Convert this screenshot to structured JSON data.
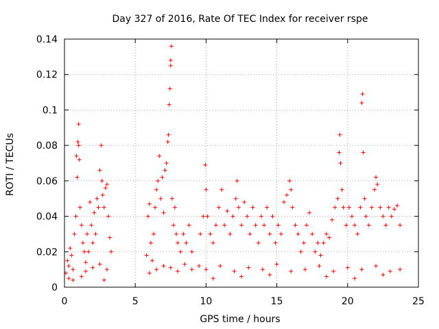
{
  "chart_data": {
    "type": "scatter",
    "title": "Day 327 of 2016, Rate Of TEC Index for receiver rspe",
    "xlabel": "GPS time / hours",
    "ylabel": "ROTI / TECUs",
    "xlim": [
      0,
      25
    ],
    "ylim": [
      0,
      0.14
    ],
    "xticks": [
      0,
      5,
      10,
      15,
      20,
      25
    ],
    "xtick_labels": [
      "0",
      "5",
      "10",
      "15",
      "20",
      "25"
    ],
    "yticks": [
      0,
      0.02,
      0.04,
      0.06,
      0.08,
      0.1,
      0.12,
      0.14
    ],
    "ytick_labels": [
      "0",
      "0.02",
      "0.04",
      "0.06",
      "0.08",
      "0.1",
      "0.12",
      "0.14"
    ],
    "grid": true,
    "marker": "plus",
    "marker_color": "#ff0000",
    "series": [
      {
        "name": "ROTI",
        "points": [
          [
            0.1,
            0.008
          ],
          [
            0.2,
            0.015
          ],
          [
            0.3,
            0.012
          ],
          [
            0.4,
            0.022
          ],
          [
            0.5,
            0.018
          ],
          [
            0.6,
            0.01
          ],
          [
            0.7,
            0.03
          ],
          [
            0.8,
            0.04
          ],
          [
            0.85,
            0.074
          ],
          [
            0.9,
            0.062
          ],
          [
            0.95,
            0.082
          ],
          [
            1.0,
            0.092
          ],
          [
            1.0,
            0.08
          ],
          [
            1.05,
            0.072
          ],
          [
            1.1,
            0.045
          ],
          [
            1.2,
            0.035
          ],
          [
            1.3,
            0.025
          ],
          [
            1.4,
            0.02
          ],
          [
            1.5,
            0.014
          ],
          [
            1.6,
            0.03
          ],
          [
            1.7,
            0.02
          ],
          [
            1.8,
            0.048
          ],
          [
            1.9,
            0.035
          ],
          [
            2.0,
            0.025
          ],
          [
            2.1,
            0.042
          ],
          [
            2.2,
            0.03
          ],
          [
            2.3,
            0.05
          ],
          [
            2.4,
            0.045
          ],
          [
            2.5,
            0.066
          ],
          [
            2.6,
            0.08
          ],
          [
            2.65,
            0.06
          ],
          [
            2.7,
            0.052
          ],
          [
            2.8,
            0.045
          ],
          [
            2.9,
            0.056
          ],
          [
            3.0,
            0.058
          ],
          [
            3.1,
            0.04
          ],
          [
            3.2,
            0.028
          ],
          [
            3.3,
            0.02
          ],
          [
            0.3,
            0.005
          ],
          [
            0.6,
            0.004
          ],
          [
            1.5,
            0.009
          ],
          [
            2.0,
            0.011
          ],
          [
            2.5,
            0.013
          ],
          [
            3.0,
            0.01
          ],
          [
            1.2,
            0.006
          ],
          [
            2.8,
            0.004
          ],
          [
            5.8,
            0.018
          ],
          [
            5.9,
            0.04
          ],
          [
            6.0,
            0.047
          ],
          [
            6.1,
            0.025
          ],
          [
            6.2,
            0.015
          ],
          [
            6.3,
            0.03
          ],
          [
            6.4,
            0.045
          ],
          [
            6.5,
            0.055
          ],
          [
            6.6,
            0.06
          ],
          [
            6.7,
            0.074
          ],
          [
            6.8,
            0.05
          ],
          [
            6.9,
            0.062
          ],
          [
            7.0,
            0.042
          ],
          [
            7.1,
            0.066
          ],
          [
            7.2,
            0.07
          ],
          [
            7.3,
            0.082
          ],
          [
            7.35,
            0.086
          ],
          [
            7.4,
            0.103
          ],
          [
            7.45,
            0.112
          ],
          [
            7.5,
            0.125
          ],
          [
            7.5,
            0.128
          ],
          [
            7.55,
            0.136
          ],
          [
            7.6,
            0.05
          ],
          [
            7.7,
            0.035
          ],
          [
            7.8,
            0.045
          ],
          [
            7.9,
            0.03
          ],
          [
            8.0,
            0.025
          ],
          [
            8.2,
            0.02
          ],
          [
            8.4,
            0.03
          ],
          [
            8.6,
            0.025
          ],
          [
            8.8,
            0.035
          ],
          [
            9.0,
            0.02
          ],
          [
            6.0,
            0.008
          ],
          [
            6.5,
            0.01
          ],
          [
            7.0,
            0.012
          ],
          [
            7.5,
            0.011
          ],
          [
            8.0,
            0.009
          ],
          [
            8.5,
            0.013
          ],
          [
            9.0,
            0.01
          ],
          [
            9.5,
            0.012
          ],
          [
            9.6,
            0.03
          ],
          [
            9.8,
            0.04
          ],
          [
            9.95,
            0.069
          ],
          [
            10.0,
            0.055
          ],
          [
            10.1,
            0.04
          ],
          [
            10.3,
            0.03
          ],
          [
            10.5,
            0.025
          ],
          [
            10.7,
            0.035
          ],
          [
            10.9,
            0.045
          ],
          [
            11.1,
            0.055
          ],
          [
            11.3,
            0.035
          ],
          [
            11.5,
            0.043
          ],
          [
            11.7,
            0.03
          ],
          [
            11.9,
            0.04
          ],
          [
            12.1,
            0.05
          ],
          [
            12.2,
            0.06
          ],
          [
            12.3,
            0.045
          ],
          [
            12.5,
            0.035
          ],
          [
            12.7,
            0.048
          ],
          [
            12.9,
            0.04
          ],
          [
            13.1,
            0.03
          ],
          [
            13.3,
            0.045
          ],
          [
            13.5,
            0.035
          ],
          [
            13.7,
            0.025
          ],
          [
            13.9,
            0.04
          ],
          [
            14.1,
            0.035
          ],
          [
            14.3,
            0.045
          ],
          [
            14.5,
            0.03
          ],
          [
            14.7,
            0.04
          ],
          [
            14.9,
            0.025
          ],
          [
            15.1,
            0.035
          ],
          [
            15.3,
            0.03
          ],
          [
            15.5,
            0.048
          ],
          [
            15.7,
            0.052
          ],
          [
            15.9,
            0.06
          ],
          [
            16.0,
            0.055
          ],
          [
            16.1,
            0.045
          ],
          [
            16.3,
            0.035
          ],
          [
            16.5,
            0.03
          ],
          [
            16.7,
            0.02
          ],
          [
            10.0,
            0.01
          ],
          [
            11.0,
            0.012
          ],
          [
            12.0,
            0.009
          ],
          [
            13.0,
            0.011
          ],
          [
            14.0,
            0.01
          ],
          [
            15.0,
            0.013
          ],
          [
            16.0,
            0.009
          ],
          [
            10.5,
            0.005
          ],
          [
            12.5,
            0.006
          ],
          [
            14.5,
            0.007
          ],
          [
            16.9,
            0.025
          ],
          [
            17.1,
            0.035
          ],
          [
            17.3,
            0.042
          ],
          [
            17.5,
            0.03
          ],
          [
            17.7,
            0.02
          ],
          [
            17.9,
            0.025
          ],
          [
            18.1,
            0.018
          ],
          [
            18.3,
            0.025
          ],
          [
            18.5,
            0.03
          ],
          [
            18.7,
            0.028
          ],
          [
            18.9,
            0.038
          ],
          [
            19.1,
            0.045
          ],
          [
            19.3,
            0.05
          ],
          [
            19.4,
            0.076
          ],
          [
            19.45,
            0.086
          ],
          [
            19.5,
            0.07
          ],
          [
            19.6,
            0.055
          ],
          [
            19.7,
            0.045
          ],
          [
            19.9,
            0.035
          ],
          [
            20.1,
            0.045
          ],
          [
            20.3,
            0.04
          ],
          [
            20.5,
            0.035
          ],
          [
            20.7,
            0.03
          ],
          [
            20.9,
            0.045
          ],
          [
            21.0,
            0.104
          ],
          [
            21.05,
            0.109
          ],
          [
            21.1,
            0.076
          ],
          [
            21.2,
            0.05
          ],
          [
            21.3,
            0.04
          ],
          [
            21.5,
            0.035
          ],
          [
            21.7,
            0.045
          ],
          [
            21.9,
            0.055
          ],
          [
            22.0,
            0.062
          ],
          [
            22.1,
            0.058
          ],
          [
            22.3,
            0.045
          ],
          [
            22.5,
            0.04
          ],
          [
            22.7,
            0.035
          ],
          [
            22.9,
            0.045
          ],
          [
            23.1,
            0.04
          ],
          [
            23.3,
            0.044
          ],
          [
            23.5,
            0.046
          ],
          [
            23.7,
            0.035
          ],
          [
            17.0,
            0.01
          ],
          [
            18.0,
            0.012
          ],
          [
            19.0,
            0.009
          ],
          [
            20.0,
            0.011
          ],
          [
            21.0,
            0.01
          ],
          [
            22.0,
            0.012
          ],
          [
            23.0,
            0.009
          ],
          [
            23.7,
            0.01
          ],
          [
            18.5,
            0.006
          ],
          [
            20.5,
            0.005
          ],
          [
            22.5,
            0.007
          ]
        ]
      }
    ]
  }
}
